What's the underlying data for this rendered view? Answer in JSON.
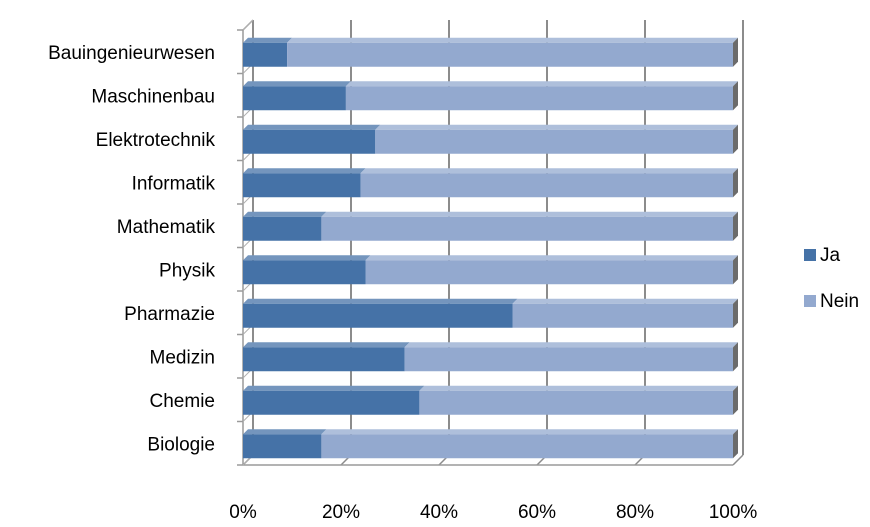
{
  "chart_data": {
    "type": "bar",
    "orientation": "horizontal",
    "stacked": "percent",
    "style": "3d",
    "categories": [
      "Bauingenieurwesen",
      "Maschinenbau",
      "Elektrotechnik",
      "Informatik",
      "Mathematik",
      "Physik",
      "Pharmazie",
      "Medizin",
      "Chemie",
      "Biologie"
    ],
    "series": [
      {
        "name": "Ja",
        "color": "#4572A7",
        "values": [
          9,
          21,
          27,
          24,
          16,
          25,
          55,
          33,
          36,
          16
        ]
      },
      {
        "name": "Nein",
        "color": "#93A9CF",
        "values": [
          91,
          79,
          73,
          76,
          84,
          75,
          45,
          67,
          64,
          84
        ]
      }
    ],
    "xticks": [
      "0%",
      "20%",
      "40%",
      "60%",
      "80%",
      "100%"
    ],
    "xlim": [
      0,
      100
    ],
    "grid": true,
    "legend_position": "right",
    "title": "",
    "xlabel": "",
    "ylabel": ""
  }
}
